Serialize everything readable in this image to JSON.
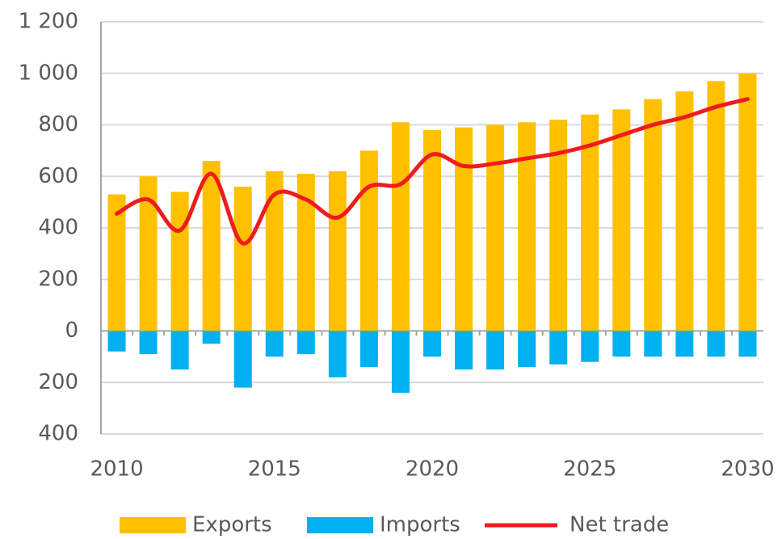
{
  "chart_data": {
    "type": "bar",
    "x": [
      2010,
      2011,
      2012,
      2013,
      2014,
      2015,
      2016,
      2017,
      2018,
      2019,
      2020,
      2021,
      2022,
      2023,
      2024,
      2025,
      2026,
      2027,
      2028,
      2029,
      2030
    ],
    "xlim": [
      2009.5,
      2030.5
    ],
    "xticks": [
      2010,
      2015,
      2020,
      2025,
      2030
    ],
    "ylim": [
      -400,
      1200
    ],
    "yticks": [
      {
        "value": 1200,
        "label": "1 200"
      },
      {
        "value": 1000,
        "label": "1 000"
      },
      800,
      600,
      400,
      200,
      0,
      {
        "value": -200,
        "label": "200"
      },
      {
        "value": -400,
        "label": "400"
      }
    ],
    "grid": true,
    "legend": "bottom",
    "series": [
      {
        "name": "Exports",
        "type": "bar",
        "color": "#ffc000",
        "values": [
          530,
          600,
          540,
          660,
          560,
          620,
          610,
          620,
          700,
          810,
          780,
          790,
          800,
          810,
          820,
          840,
          860,
          900,
          930,
          970,
          1000
        ]
      },
      {
        "name": "Imports",
        "type": "bar",
        "color": "#00b0f0",
        "values": [
          -80,
          -90,
          -150,
          -50,
          -220,
          -100,
          -90,
          -180,
          -140,
          -240,
          -100,
          -150,
          -150,
          -140,
          -130,
          -120,
          -100,
          -100,
          -100,
          -100,
          -100
        ]
      },
      {
        "name": "Net trade",
        "type": "line",
        "color": "#ee1c1c",
        "values": [
          455,
          510,
          390,
          610,
          340,
          530,
          510,
          440,
          560,
          570,
          685,
          640,
          650,
          670,
          690,
          720,
          760,
          800,
          830,
          870,
          900
        ]
      }
    ]
  }
}
